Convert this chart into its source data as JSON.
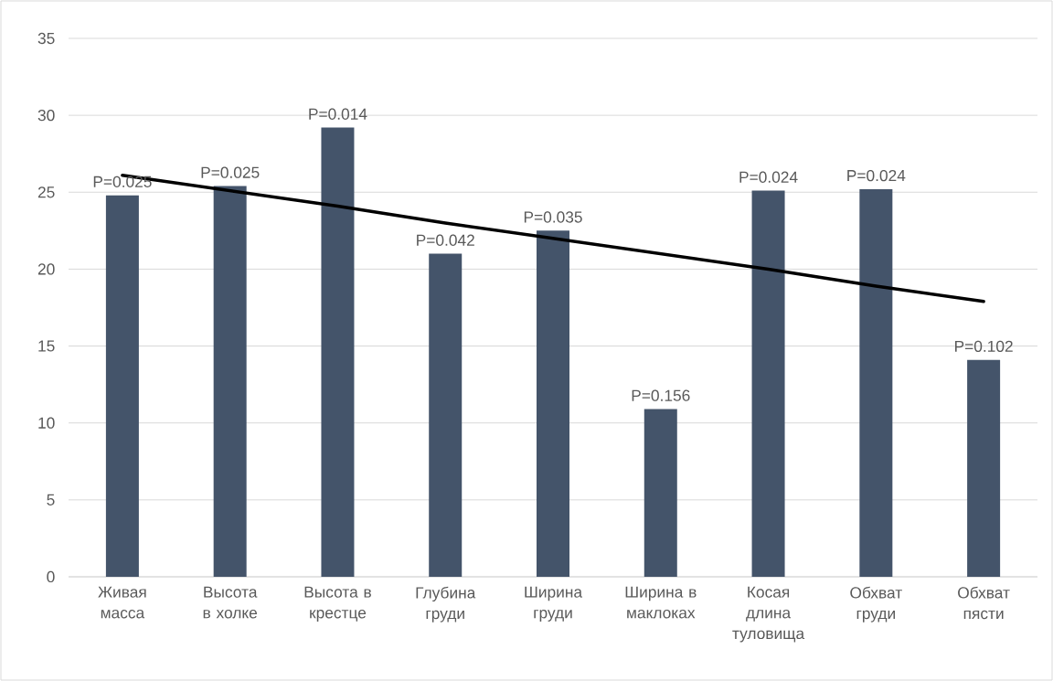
{
  "chart_data": {
    "type": "bar",
    "categories": [
      "Живая масса",
      "Высота в холке",
      "Высота в крестце",
      "Глубина груди",
      "Ширина груди",
      "Ширина в маклоках",
      "Косая длина туловища",
      "Обхват груди",
      "Обхват пясти"
    ],
    "series": [
      {
        "color": "#44546a",
        "values": [
          24.8,
          25.4,
          29.2,
          21.0,
          22.5,
          10.9,
          25.1,
          25.2,
          14.1
        ]
      },
      {
        "type": "line",
        "color": "#000000",
        "values": [
          26.1,
          25.1,
          24.1,
          23.0,
          22.0,
          21.0,
          20.0,
          18.9,
          17.9
        ]
      }
    ],
    "annotations": [
      {
        "text": "P=0.025",
        "x": "Живая масса",
        "y": 24.8
      },
      {
        "text": "P=0.025",
        "x": "Высота в холке",
        "y": 25.4
      },
      {
        "text": "P=0.014",
        "x": "Высота в крестце",
        "y": 29.2
      },
      {
        "text": "P=0.042",
        "x": "Глубина груди",
        "y": 21.0
      },
      {
        "text": "P=0.035",
        "x": "Ширина груди",
        "y": 22.5
      },
      {
        "text": "P=0.156",
        "x": "Ширина в маклоках",
        "y": 10.9
      },
      {
        "text": "P=0.024",
        "x": "Косая длина туловища",
        "y": 25.1
      },
      {
        "text": "P=0.024",
        "x": "Обхват груди",
        "y": 25.2
      },
      {
        "text": "P=0.102",
        "x": "Обхват пясти",
        "y": 14.1
      }
    ],
    "ylim": [
      0,
      35
    ],
    "yticks": [
      0,
      5,
      10,
      15,
      20,
      25,
      30,
      35
    ],
    "grid": "y"
  }
}
